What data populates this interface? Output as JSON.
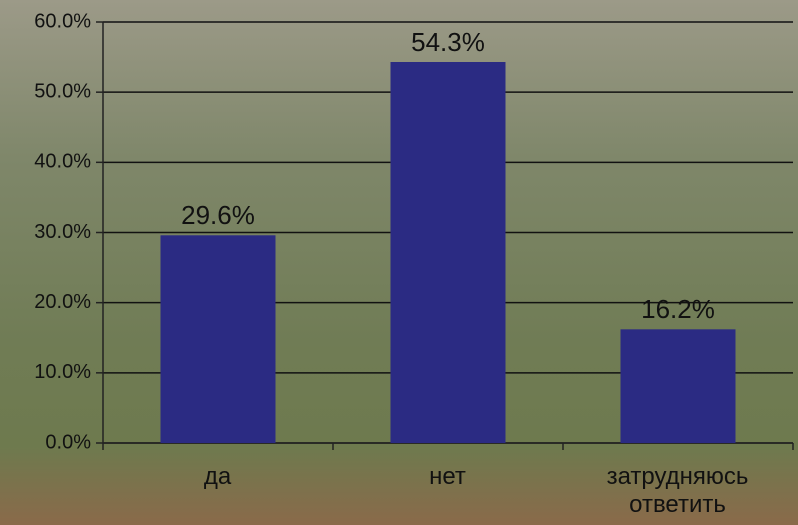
{
  "chart_data": {
    "type": "bar",
    "categories": [
      "да",
      "нет",
      "затрудняюсь ответить"
    ],
    "values": [
      29.6,
      54.3,
      16.2
    ],
    "value_labels": [
      "29.6%",
      "54.3%",
      "16.2%"
    ],
    "color": "#2b2b83",
    "ylim": [
      0,
      60
    ],
    "yticks": [
      {
        "value": 0,
        "label": "0.0%"
      },
      {
        "value": 10,
        "label": "10.0%"
      },
      {
        "value": 20,
        "label": "20.0%"
      },
      {
        "value": 30,
        "label": "30.0%"
      },
      {
        "value": 40,
        "label": "40.0%"
      },
      {
        "value": 50,
        "label": "50.0%"
      },
      {
        "value": 60,
        "label": "60.0%"
      }
    ],
    "grid": true
  }
}
